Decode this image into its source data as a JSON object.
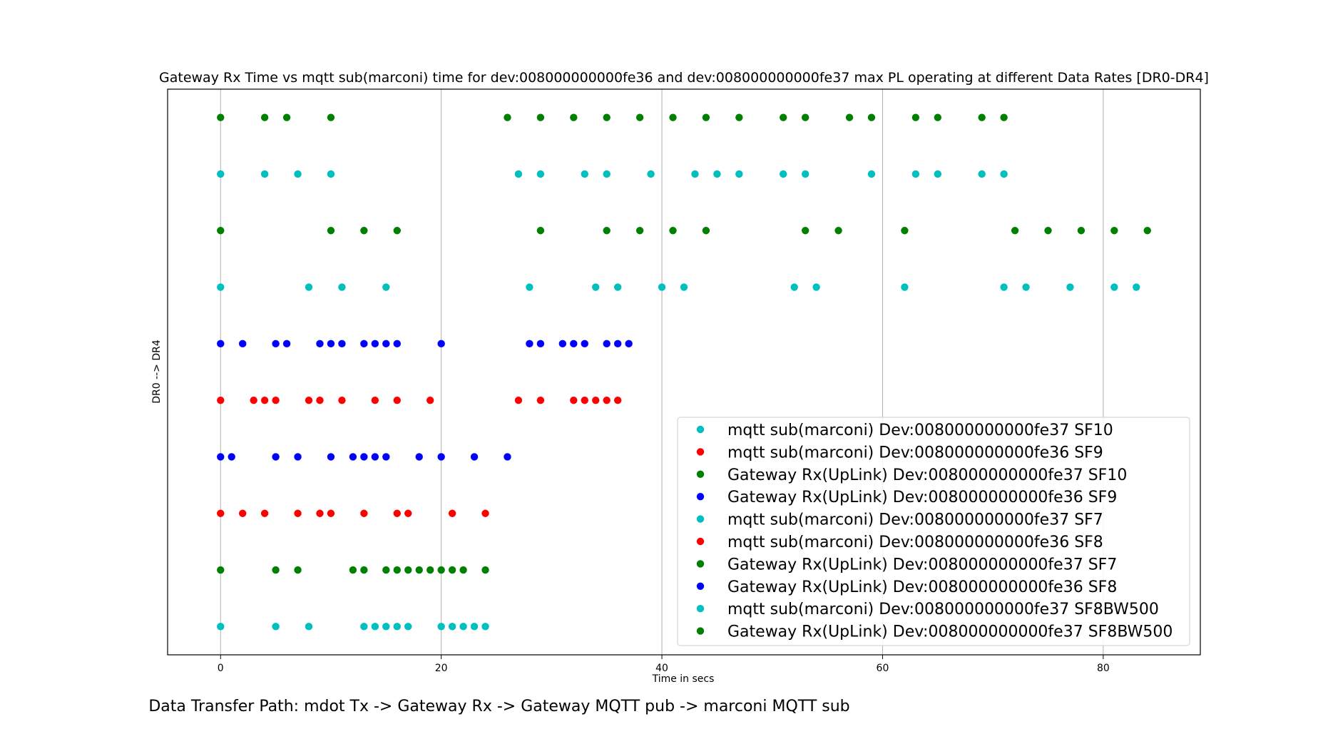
{
  "chart_data": {
    "type": "scatter",
    "title": "Gateway Rx Time vs mqtt sub(marconi) time for dev:008000000000fe36 and dev:008000000000fe37 max PL operating at different Data Rates [DR0-DR4]",
    "xlabel": "Time in secs",
    "ylabel": "DR0 --> DR4",
    "caption": "Data Transfer Path: mdot Tx -> Gateway Rx -> Gateway MQTT pub -> marconi MQTT sub",
    "xlim": [
      -4.8,
      88.8
    ],
    "ylim": [
      0.5,
      10.5
    ],
    "x_ticks": [
      0,
      20,
      40,
      60,
      80
    ],
    "y_ticks_shown": false,
    "grid": "x",
    "legend_position": "lower-right",
    "series": [
      {
        "name": "mqtt sub(marconi) Dev:008000000000fe37 SF10",
        "color": "#00bfbf",
        "y": 9,
        "x": [
          0,
          4,
          7,
          10,
          27,
          29,
          33,
          35,
          39,
          43,
          45,
          47,
          51,
          53,
          59,
          63,
          65,
          69,
          71
        ]
      },
      {
        "name": "mqtt sub(marconi) Dev:008000000000fe36 SF9",
        "color": "#ff0000",
        "y": 5,
        "x": [
          0,
          3,
          4,
          5,
          8,
          9,
          11,
          14,
          16,
          19,
          27,
          29,
          32,
          33,
          34,
          35,
          36
        ]
      },
      {
        "name": "Gateway Rx(UpLink) Dev:008000000000fe37 SF10",
        "color": "#008000",
        "y": 10,
        "x": [
          0,
          4,
          6,
          10,
          26,
          29,
          32,
          35,
          38,
          41,
          44,
          47,
          51,
          53,
          57,
          59,
          63,
          65,
          69,
          71
        ]
      },
      {
        "name": "Gateway Rx(UpLink) Dev:008000000000fe36 SF9",
        "color": "#0000ff",
        "y": 6,
        "x": [
          0,
          2,
          5,
          6,
          9,
          10,
          11,
          13,
          14,
          15,
          16,
          20,
          28,
          29,
          31,
          32,
          33,
          35,
          36,
          37
        ]
      },
      {
        "name": "mqtt sub(marconi) Dev:008000000000fe37 SF7",
        "color": "#00bfbf",
        "y": 7,
        "x": [
          0,
          8,
          11,
          15,
          28,
          34,
          36,
          40,
          42,
          52,
          54,
          62,
          71,
          73,
          77,
          81,
          83
        ]
      },
      {
        "name": "mqtt sub(marconi) Dev:008000000000fe36 SF8",
        "color": "#ff0000",
        "y": 3,
        "x": [
          0,
          2,
          4,
          7,
          9,
          10,
          13,
          16,
          17,
          21,
          24
        ]
      },
      {
        "name": "Gateway Rx(UpLink) Dev:008000000000fe37 SF7",
        "color": "#008000",
        "y": 8,
        "x": [
          0,
          10,
          13,
          16,
          29,
          35,
          38,
          41,
          44,
          53,
          56,
          62,
          72,
          75,
          78,
          81,
          84
        ]
      },
      {
        "name": "Gateway Rx(UpLink) Dev:008000000000fe36 SF8",
        "color": "#0000ff",
        "y": 4,
        "x": [
          0,
          1,
          5,
          7,
          10,
          12,
          13,
          14,
          15,
          18,
          20,
          23,
          26
        ]
      },
      {
        "name": "mqtt sub(marconi) Dev:008000000000fe37 SF8BW500",
        "color": "#00bfbf",
        "y": 1,
        "x": [
          0,
          5,
          8,
          13,
          14,
          15,
          16,
          17,
          20,
          21,
          22,
          23,
          24
        ]
      },
      {
        "name": "Gateway Rx(UpLink) Dev:008000000000fe37 SF8BW500",
        "color": "#008000",
        "y": 2,
        "x": [
          0,
          5,
          7,
          12,
          13,
          15,
          16,
          17,
          18,
          19,
          20,
          21,
          22,
          24
        ]
      }
    ]
  }
}
